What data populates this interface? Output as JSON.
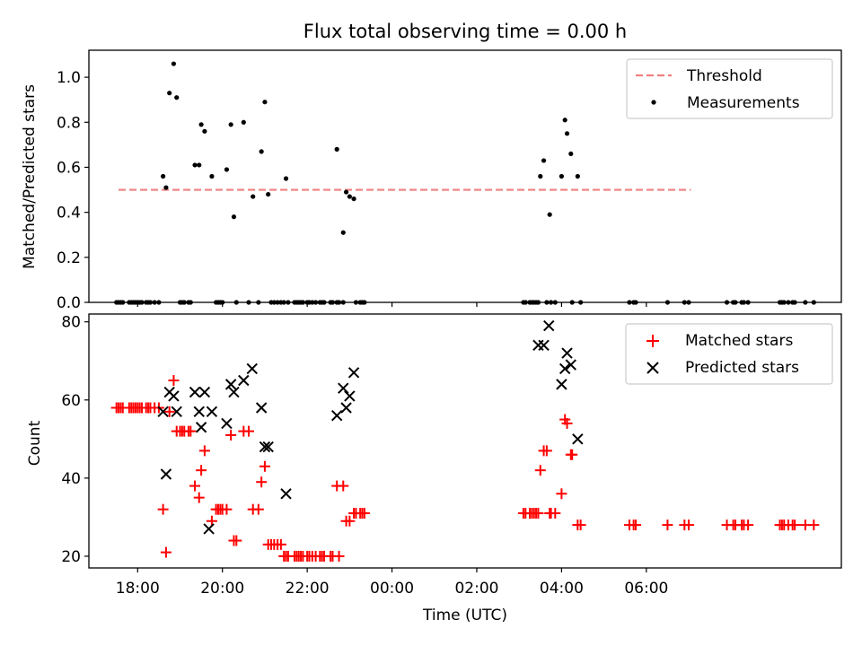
{
  "chart_data": [
    {
      "type": "scatter",
      "title": "Flux total observing time = 0.00 h",
      "ylabel": "Matched/Predicted stars",
      "xlabel": "",
      "ylim": [
        0,
        1.12
      ],
      "x_unit": "hours since 18:00 UTC",
      "yticks": [
        "0.0",
        "0.2",
        "0.4",
        "0.6",
        "0.8",
        "1.0"
      ],
      "ytick_values": [
        0,
        0.2,
        0.4,
        0.6,
        0.8,
        1.0
      ],
      "legend": {
        "position": "top-right",
        "entries": [
          "Threshold",
          "Measurements"
        ]
      },
      "threshold": {
        "name": "Threshold",
        "value": 0.5,
        "x_start": -0.45,
        "x_end": 13.05,
        "color": "#f08080"
      },
      "series": [
        {
          "name": "Measurements",
          "color": "#000000",
          "points": [
            [
              -0.5,
              0
            ],
            [
              -0.45,
              0
            ],
            [
              -0.4,
              0
            ],
            [
              -0.35,
              0
            ],
            [
              -0.2,
              0
            ],
            [
              -0.15,
              0
            ],
            [
              -0.1,
              0
            ],
            [
              -0.05,
              0
            ],
            [
              0.0,
              0
            ],
            [
              0.05,
              0
            ],
            [
              0.1,
              0
            ],
            [
              0.2,
              0
            ],
            [
              0.25,
              0
            ],
            [
              0.3,
              0
            ],
            [
              0.4,
              0
            ],
            [
              0.5,
              0
            ],
            [
              0.6,
              0.56
            ],
            [
              0.67,
              0.51
            ],
            [
              0.75,
              0.93
            ],
            [
              0.85,
              1.06
            ],
            [
              0.92,
              0.91
            ],
            [
              1.0,
              0
            ],
            [
              1.05,
              0
            ],
            [
              1.1,
              0
            ],
            [
              1.2,
              0
            ],
            [
              1.25,
              0
            ],
            [
              1.35,
              0.61
            ],
            [
              1.45,
              0.61
            ],
            [
              1.5,
              0.79
            ],
            [
              1.58,
              0.76
            ],
            [
              1.75,
              0.56
            ],
            [
              1.85,
              0
            ],
            [
              1.9,
              0
            ],
            [
              1.95,
              0
            ],
            [
              2.0,
              0
            ],
            [
              2.1,
              0.59
            ],
            [
              2.2,
              0.79
            ],
            [
              2.27,
              0.38
            ],
            [
              2.33,
              0
            ],
            [
              2.5,
              0.8
            ],
            [
              2.62,
              0
            ],
            [
              2.72,
              0.47
            ],
            [
              2.85,
              0
            ],
            [
              2.92,
              0.67
            ],
            [
              3.0,
              0.89
            ],
            [
              3.08,
              0.48
            ],
            [
              3.15,
              0
            ],
            [
              3.22,
              0
            ],
            [
              3.3,
              0
            ],
            [
              3.38,
              0
            ],
            [
              3.45,
              0
            ],
            [
              3.5,
              0.55
            ],
            [
              3.55,
              0
            ],
            [
              3.7,
              0
            ],
            [
              3.75,
              0
            ],
            [
              3.8,
              0
            ],
            [
              3.85,
              0
            ],
            [
              3.9,
              0
            ],
            [
              4.0,
              0
            ],
            [
              4.05,
              0
            ],
            [
              4.12,
              0
            ],
            [
              4.2,
              0
            ],
            [
              4.3,
              0
            ],
            [
              4.35,
              0
            ],
            [
              4.4,
              0
            ],
            [
              4.55,
              0
            ],
            [
              4.6,
              0
            ],
            [
              4.7,
              0
            ],
            [
              4.75,
              0
            ],
            [
              4.85,
              0
            ],
            [
              4.7,
              0.68
            ],
            [
              4.85,
              0.31
            ],
            [
              4.92,
              0.49
            ],
            [
              5.0,
              0.47
            ],
            [
              5.1,
              0.46
            ],
            [
              5.15,
              0
            ],
            [
              5.25,
              0
            ],
            [
              5.3,
              0
            ],
            [
              5.35,
              0
            ],
            [
              9.1,
              0
            ],
            [
              9.15,
              0
            ],
            [
              9.25,
              0
            ],
            [
              9.3,
              0
            ],
            [
              9.35,
              0
            ],
            [
              9.4,
              0
            ],
            [
              9.45,
              0
            ],
            [
              9.5,
              0.56
            ],
            [
              9.58,
              0.63
            ],
            [
              9.72,
              0.39
            ],
            [
              9.65,
              0
            ],
            [
              9.75,
              0
            ],
            [
              9.85,
              0
            ],
            [
              10.0,
              0.56
            ],
            [
              10.08,
              0.81
            ],
            [
              10.13,
              0.75
            ],
            [
              10.22,
              0.66
            ],
            [
              10.38,
              0.56
            ],
            [
              10.25,
              0
            ],
            [
              10.45,
              0
            ],
            [
              11.6,
              0
            ],
            [
              11.7,
              0
            ],
            [
              11.75,
              0
            ],
            [
              12.5,
              0
            ],
            [
              12.9,
              0
            ],
            [
              13.0,
              0
            ],
            [
              13.9,
              0
            ],
            [
              14.05,
              0
            ],
            [
              14.1,
              0
            ],
            [
              14.25,
              0
            ],
            [
              14.3,
              0
            ],
            [
              14.4,
              0
            ],
            [
              15.15,
              0
            ],
            [
              15.2,
              0
            ],
            [
              15.25,
              0
            ],
            [
              15.35,
              0
            ],
            [
              15.45,
              0
            ],
            [
              15.5,
              0
            ],
            [
              15.75,
              0
            ],
            [
              15.95,
              0
            ]
          ]
        }
      ]
    },
    {
      "type": "scatter",
      "title": "",
      "ylabel": "Count",
      "xlabel": "Time (UTC)",
      "ylim": [
        17,
        82
      ],
      "xlim": [
        -1.15,
        16.6
      ],
      "x_unit": "hours since 18:00 UTC",
      "xticks": [
        "18:00",
        "20:00",
        "22:00",
        "00:00",
        "02:00",
        "04:00",
        "06:00"
      ],
      "xtick_values": [
        0,
        2,
        4,
        6,
        8,
        10,
        12
      ],
      "yticks": [
        "20",
        "40",
        "60",
        "80"
      ],
      "ytick_values": [
        20,
        40,
        60,
        80
      ],
      "legend": {
        "position": "top-right",
        "entries": [
          "Matched stars",
          "Predicted stars"
        ]
      },
      "series": [
        {
          "name": "Matched stars",
          "marker": "+",
          "color": "#ff0000",
          "points": [
            [
              -0.5,
              58
            ],
            [
              -0.45,
              58
            ],
            [
              -0.4,
              58
            ],
            [
              -0.35,
              58
            ],
            [
              -0.2,
              58
            ],
            [
              -0.15,
              58
            ],
            [
              -0.1,
              58
            ],
            [
              -0.05,
              58
            ],
            [
              0.0,
              58
            ],
            [
              0.05,
              58
            ],
            [
              0.1,
              58
            ],
            [
              0.2,
              58
            ],
            [
              0.25,
              58
            ],
            [
              0.3,
              58
            ],
            [
              0.4,
              58
            ],
            [
              0.5,
              58
            ],
            [
              0.6,
              32
            ],
            [
              0.67,
              21
            ],
            [
              0.75,
              57
            ],
            [
              0.85,
              65
            ],
            [
              0.92,
              52
            ],
            [
              1.0,
              52
            ],
            [
              1.05,
              52
            ],
            [
              1.1,
              52
            ],
            [
              1.2,
              52
            ],
            [
              1.25,
              52
            ],
            [
              1.35,
              38
            ],
            [
              1.45,
              35
            ],
            [
              1.5,
              42
            ],
            [
              1.58,
              47
            ],
            [
              1.75,
              29
            ],
            [
              1.85,
              32
            ],
            [
              1.9,
              32
            ],
            [
              1.95,
              32
            ],
            [
              2.0,
              32
            ],
            [
              2.1,
              32
            ],
            [
              2.2,
              51
            ],
            [
              2.27,
              24
            ],
            [
              2.33,
              24
            ],
            [
              2.5,
              52
            ],
            [
              2.62,
              52
            ],
            [
              2.72,
              32
            ],
            [
              2.85,
              32
            ],
            [
              2.92,
              39
            ],
            [
              3.0,
              43
            ],
            [
              3.08,
              23
            ],
            [
              3.15,
              23
            ],
            [
              3.22,
              23
            ],
            [
              3.3,
              23
            ],
            [
              3.38,
              23
            ],
            [
              3.45,
              20
            ],
            [
              3.5,
              20
            ],
            [
              3.55,
              20
            ],
            [
              3.7,
              20
            ],
            [
              3.75,
              20
            ],
            [
              3.8,
              20
            ],
            [
              3.85,
              20
            ],
            [
              3.9,
              20
            ],
            [
              4.0,
              20
            ],
            [
              4.05,
              20
            ],
            [
              4.12,
              20
            ],
            [
              4.2,
              20
            ],
            [
              4.3,
              20
            ],
            [
              4.35,
              20
            ],
            [
              4.4,
              20
            ],
            [
              4.55,
              20
            ],
            [
              4.6,
              20
            ],
            [
              4.7,
              38
            ],
            [
              4.75,
              20
            ],
            [
              4.85,
              38
            ],
            [
              4.92,
              29
            ],
            [
              5.0,
              29
            ],
            [
              5.1,
              31
            ],
            [
              5.15,
              31
            ],
            [
              5.25,
              31
            ],
            [
              5.3,
              31
            ],
            [
              5.35,
              31
            ],
            [
              9.1,
              31
            ],
            [
              9.15,
              31
            ],
            [
              9.25,
              31
            ],
            [
              9.3,
              31
            ],
            [
              9.35,
              31
            ],
            [
              9.4,
              31
            ],
            [
              9.45,
              31
            ],
            [
              9.5,
              42
            ],
            [
              9.58,
              47
            ],
            [
              9.65,
              47
            ],
            [
              9.72,
              31
            ],
            [
              9.75,
              31
            ],
            [
              9.85,
              31
            ],
            [
              10.0,
              36
            ],
            [
              10.08,
              55
            ],
            [
              10.13,
              54
            ],
            [
              10.22,
              46
            ],
            [
              10.25,
              46
            ],
            [
              10.38,
              28
            ],
            [
              10.45,
              28
            ],
            [
              11.6,
              28
            ],
            [
              11.7,
              28
            ],
            [
              11.75,
              28
            ],
            [
              12.5,
              28
            ],
            [
              12.9,
              28
            ],
            [
              13.0,
              28
            ],
            [
              13.9,
              28
            ],
            [
              14.05,
              28
            ],
            [
              14.1,
              28
            ],
            [
              14.25,
              28
            ],
            [
              14.3,
              28
            ],
            [
              14.4,
              28
            ],
            [
              15.15,
              28
            ],
            [
              15.2,
              28
            ],
            [
              15.25,
              28
            ],
            [
              15.35,
              28
            ],
            [
              15.45,
              28
            ],
            [
              15.5,
              28
            ],
            [
              15.75,
              28
            ],
            [
              15.95,
              28
            ]
          ]
        },
        {
          "name": "Predicted stars",
          "marker": "x",
          "color": "#000000",
          "points": [
            [
              0.6,
              57
            ],
            [
              0.67,
              41
            ],
            [
              0.75,
              62
            ],
            [
              0.85,
              61
            ],
            [
              0.92,
              57
            ],
            [
              1.35,
              62
            ],
            [
              1.45,
              57
            ],
            [
              1.5,
              53
            ],
            [
              1.58,
              62
            ],
            [
              1.68,
              27
            ],
            [
              1.75,
              57
            ],
            [
              2.1,
              54
            ],
            [
              2.2,
              64
            ],
            [
              2.27,
              62
            ],
            [
              2.5,
              65
            ],
            [
              2.7,
              68
            ],
            [
              2.92,
              58
            ],
            [
              3.0,
              48
            ],
            [
              3.08,
              48
            ],
            [
              3.5,
              36
            ],
            [
              4.7,
              56
            ],
            [
              4.85,
              63
            ],
            [
              4.92,
              58
            ],
            [
              5.0,
              61
            ],
            [
              5.1,
              67
            ],
            [
              9.45,
              74
            ],
            [
              9.58,
              74
            ],
            [
              9.7,
              79
            ],
            [
              10.0,
              64
            ],
            [
              10.08,
              68
            ],
            [
              10.13,
              72
            ],
            [
              10.22,
              69
            ],
            [
              10.38,
              50
            ]
          ]
        }
      ]
    }
  ]
}
